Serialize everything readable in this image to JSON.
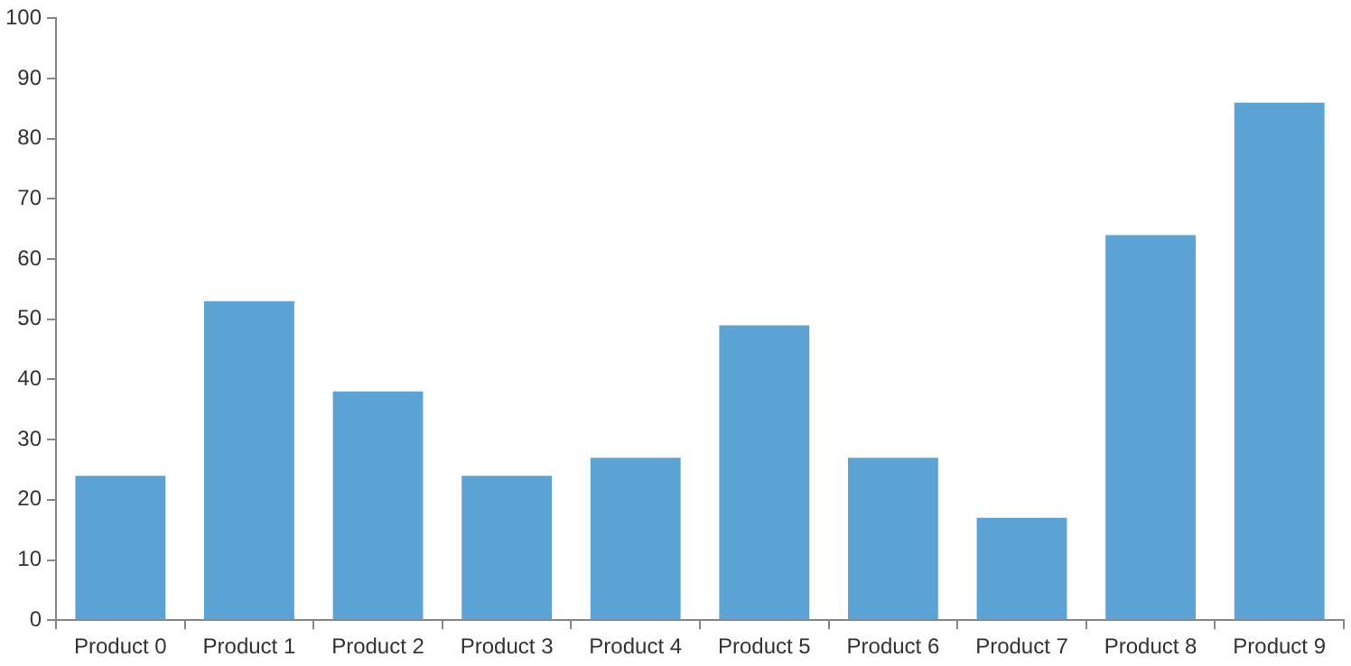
{
  "chart_data": {
    "type": "bar",
    "categories": [
      "Product 0",
      "Product 1",
      "Product 2",
      "Product 3",
      "Product 4",
      "Product 5",
      "Product 6",
      "Product 7",
      "Product 8",
      "Product 9"
    ],
    "values": [
      24,
      53,
      38,
      24,
      27,
      49,
      27,
      17,
      64,
      86
    ],
    "color": "#5ba3d4",
    "ylim": [
      0,
      100
    ],
    "yticks": [
      0,
      10,
      20,
      30,
      40,
      50,
      60,
      70,
      80,
      90,
      100
    ],
    "grid": false,
    "legend": false
  }
}
